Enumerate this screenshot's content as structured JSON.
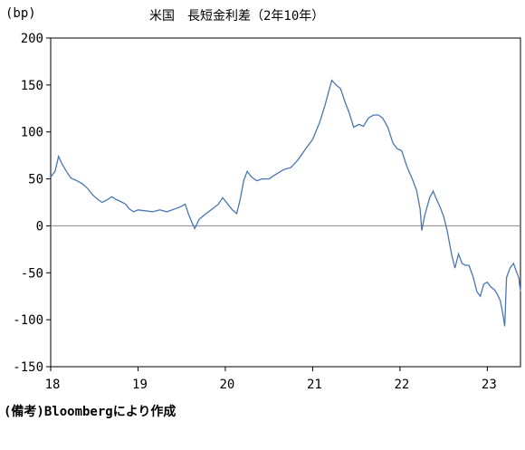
{
  "chart_data": {
    "type": "line",
    "title": "米国　長短金利差（2年10年）",
    "ylabel": "(bp)",
    "note": "(備考)Bloombergにより作成",
    "ylim": [
      -150,
      200
    ],
    "yticks": [
      200,
      150,
      100,
      50,
      0,
      -50,
      -100,
      -150
    ],
    "xlim": [
      2018.0,
      2023.38
    ],
    "xticks": [
      {
        "value": 2018,
        "label": "18"
      },
      {
        "value": 2019,
        "label": "19"
      },
      {
        "value": 2020,
        "label": "20"
      },
      {
        "value": 2021,
        "label": "21"
      },
      {
        "value": 2022,
        "label": "22"
      },
      {
        "value": 2023,
        "label": "23"
      }
    ],
    "zero_line": true,
    "grid": false,
    "line_color": "#4a77b4",
    "series": [
      {
        "points": [
          [
            2018.0,
            52
          ],
          [
            2018.05,
            58
          ],
          [
            2018.09,
            74
          ],
          [
            2018.13,
            66
          ],
          [
            2018.18,
            58
          ],
          [
            2018.23,
            51
          ],
          [
            2018.3,
            48
          ],
          [
            2018.36,
            45
          ],
          [
            2018.42,
            40
          ],
          [
            2018.48,
            33
          ],
          [
            2018.54,
            28
          ],
          [
            2018.59,
            25
          ],
          [
            2018.65,
            28
          ],
          [
            2018.7,
            31
          ],
          [
            2018.75,
            28
          ],
          [
            2018.8,
            26
          ],
          [
            2018.86,
            23
          ],
          [
            2018.9,
            18
          ],
          [
            2018.95,
            15
          ],
          [
            2019.0,
            17
          ],
          [
            2019.08,
            16
          ],
          [
            2019.17,
            15
          ],
          [
            2019.25,
            17
          ],
          [
            2019.33,
            15
          ],
          [
            2019.42,
            18
          ],
          [
            2019.48,
            20
          ],
          [
            2019.54,
            23
          ],
          [
            2019.58,
            12
          ],
          [
            2019.62,
            3
          ],
          [
            2019.65,
            -3
          ],
          [
            2019.7,
            7
          ],
          [
            2019.78,
            13
          ],
          [
            2019.85,
            18
          ],
          [
            2019.92,
            23
          ],
          [
            2019.97,
            30
          ],
          [
            2020.02,
            24
          ],
          [
            2020.08,
            17
          ],
          [
            2020.13,
            13
          ],
          [
            2020.17,
            28
          ],
          [
            2020.21,
            48
          ],
          [
            2020.25,
            58
          ],
          [
            2020.3,
            52
          ],
          [
            2020.36,
            48
          ],
          [
            2020.42,
            50
          ],
          [
            2020.5,
            50
          ],
          [
            2020.58,
            55
          ],
          [
            2020.67,
            60
          ],
          [
            2020.75,
            62
          ],
          [
            2020.83,
            70
          ],
          [
            2020.92,
            82
          ],
          [
            2021.0,
            92
          ],
          [
            2021.08,
            110
          ],
          [
            2021.14,
            128
          ],
          [
            2021.19,
            145
          ],
          [
            2021.22,
            155
          ],
          [
            2021.27,
            150
          ],
          [
            2021.32,
            146
          ],
          [
            2021.37,
            132
          ],
          [
            2021.42,
            120
          ],
          [
            2021.47,
            105
          ],
          [
            2021.53,
            108
          ],
          [
            2021.58,
            106
          ],
          [
            2021.64,
            115
          ],
          [
            2021.7,
            118
          ],
          [
            2021.75,
            118
          ],
          [
            2021.8,
            115
          ],
          [
            2021.86,
            105
          ],
          [
            2021.92,
            88
          ],
          [
            2021.97,
            82
          ],
          [
            2022.02,
            80
          ],
          [
            2022.08,
            63
          ],
          [
            2022.14,
            50
          ],
          [
            2022.19,
            38
          ],
          [
            2022.23,
            18
          ],
          [
            2022.25,
            -5
          ],
          [
            2022.28,
            10
          ],
          [
            2022.34,
            30
          ],
          [
            2022.38,
            37
          ],
          [
            2022.42,
            28
          ],
          [
            2022.46,
            20
          ],
          [
            2022.5,
            10
          ],
          [
            2022.54,
            -5
          ],
          [
            2022.59,
            -30
          ],
          [
            2022.63,
            -45
          ],
          [
            2022.67,
            -30
          ],
          [
            2022.71,
            -40
          ],
          [
            2022.75,
            -42
          ],
          [
            2022.79,
            -42
          ],
          [
            2022.84,
            -55
          ],
          [
            2022.88,
            -70
          ],
          [
            2022.92,
            -75
          ],
          [
            2022.96,
            -62
          ],
          [
            2023.0,
            -60
          ],
          [
            2023.04,
            -65
          ],
          [
            2023.08,
            -68
          ],
          [
            2023.11,
            -72
          ],
          [
            2023.15,
            -80
          ],
          [
            2023.18,
            -95
          ],
          [
            2023.2,
            -107
          ],
          [
            2023.22,
            -55
          ],
          [
            2023.26,
            -45
          ],
          [
            2023.3,
            -40
          ],
          [
            2023.33,
            -48
          ],
          [
            2023.36,
            -55
          ],
          [
            2023.38,
            -70
          ]
        ]
      }
    ]
  }
}
